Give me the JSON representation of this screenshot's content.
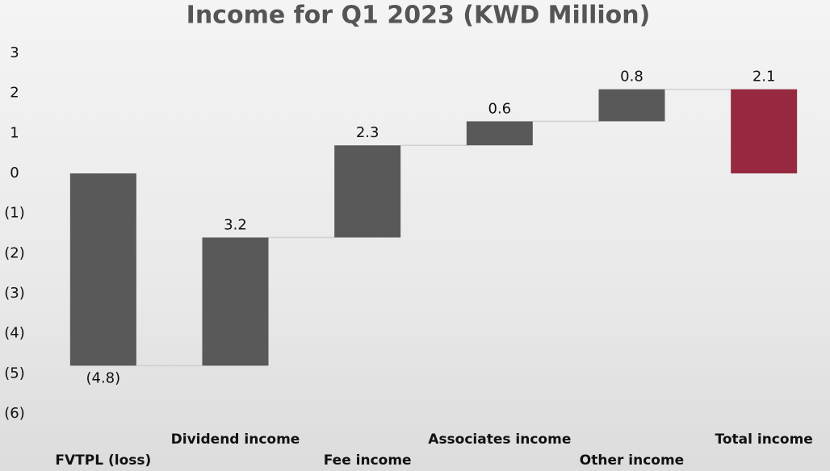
{
  "chart_data": {
    "type": "waterfall",
    "title": "Income for Q1 2023 (KWD Million)",
    "categories": [
      "FVTPL (loss)",
      "Dividend income",
      "Fee income",
      "Associates income",
      "Other income",
      "Total income"
    ],
    "values": [
      -4.8,
      3.2,
      2.3,
      0.6,
      0.8,
      2.1
    ],
    "value_labels": [
      "(4.8)",
      "3.2",
      "2.3",
      "0.6",
      "0.8",
      "2.1"
    ],
    "is_total": [
      false,
      false,
      false,
      false,
      false,
      true
    ],
    "color": "#595959",
    "total_color": "#96293f",
    "ylim": [
      -6,
      3
    ],
    "yticks": [
      {
        "value": -6,
        "label": "(6)"
      },
      {
        "value": -5,
        "label": "(5)"
      },
      {
        "value": -4,
        "label": "(4)"
      },
      {
        "value": -3,
        "label": "(3)"
      },
      {
        "value": -2,
        "label": "(2)"
      },
      {
        "value": -1,
        "label": "(1)"
      },
      0,
      1,
      2,
      3
    ]
  }
}
